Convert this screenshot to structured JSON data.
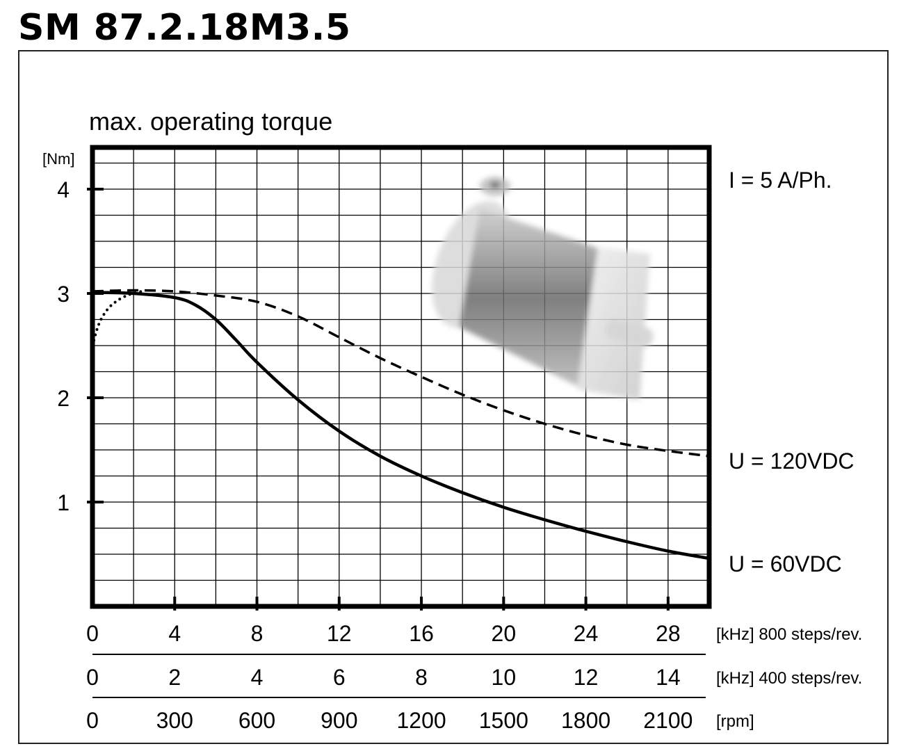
{
  "model": "SM 87.2.18M3.5",
  "chart_data": {
    "type": "line",
    "title": "max. operating torque",
    "ylabel": "[Nm]",
    "ylim": [
      0,
      4.4
    ],
    "yticks": [
      "1",
      "2",
      "3",
      "4"
    ],
    "x_unit": "kHz (800 steps/rev.)",
    "xlim": [
      0,
      30
    ],
    "grid": true,
    "x_scales": [
      {
        "ticks": [
          "0",
          "4",
          "8",
          "12",
          "16",
          "20",
          "24",
          "28"
        ],
        "label": "[kHz] 800 steps/rev."
      },
      {
        "ticks": [
          "0",
          "2",
          "4",
          "6",
          "8",
          "10",
          "12",
          "14"
        ],
        "label": "[kHz] 400 steps/rev."
      },
      {
        "ticks": [
          "0",
          "300",
          "600",
          "900",
          "1200",
          "1500",
          "1800",
          "2100"
        ],
        "label": "[rpm]"
      }
    ],
    "annotations": {
      "current": "I = 5 A/Ph.",
      "series_120": "U = 120VDC",
      "series_60": "U = 60VDC"
    },
    "series": [
      {
        "name": "U = 120VDC",
        "style": "dashed",
        "x": [
          0,
          2,
          4,
          6,
          8,
          10,
          12,
          14,
          16,
          18,
          20,
          22,
          24,
          26,
          28,
          30
        ],
        "y": [
          3.02,
          3.03,
          3.02,
          2.98,
          2.92,
          2.78,
          2.58,
          2.38,
          2.2,
          2.03,
          1.88,
          1.75,
          1.64,
          1.55,
          1.49,
          1.44
        ]
      },
      {
        "name": "U = 60VDC",
        "style": "solid",
        "x": [
          0,
          2,
          4,
          5,
          6,
          7,
          8,
          10,
          12,
          14,
          16,
          18,
          20,
          22,
          24,
          26,
          28,
          30
        ],
        "y": [
          3.01,
          3.0,
          2.96,
          2.89,
          2.75,
          2.55,
          2.34,
          1.98,
          1.68,
          1.44,
          1.25,
          1.09,
          0.95,
          0.83,
          0.72,
          0.62,
          0.53,
          0.46
        ]
      },
      {
        "name": "",
        "style": "dotted",
        "x": [
          0,
          0.3,
          0.7,
          1.2,
          1.8,
          2.4
        ],
        "y": [
          2.5,
          2.7,
          2.84,
          2.93,
          2.99,
          3.02
        ]
      }
    ]
  }
}
